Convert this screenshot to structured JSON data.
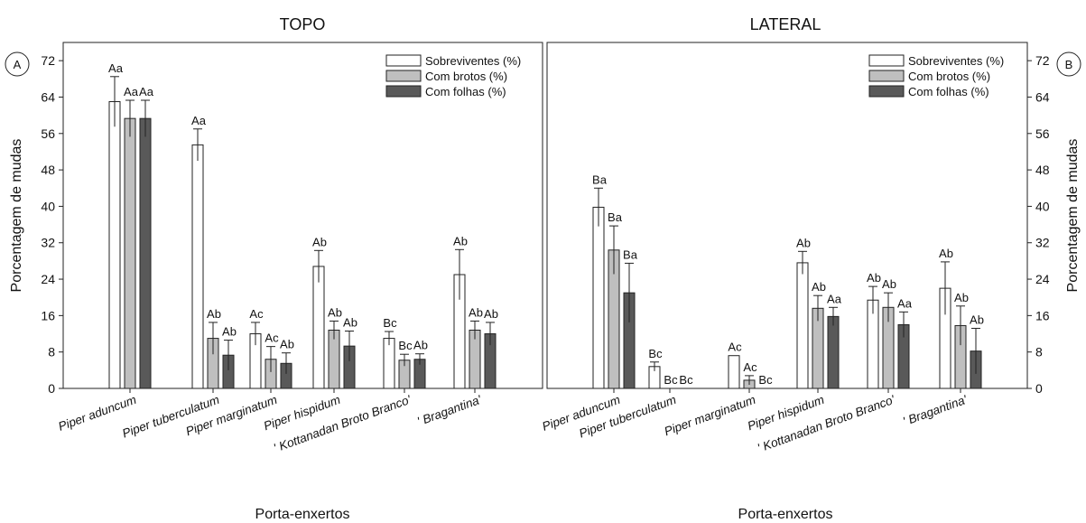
{
  "chart_data": [
    {
      "type": "bar",
      "panel_letter": "A",
      "title": "TOPO",
      "xlabel": "Porta-enxertos",
      "ylabel": "Porcentagem de mudas",
      "ylim": [
        0,
        76
      ],
      "yticks": [
        0,
        8,
        16,
        24,
        32,
        40,
        48,
        56,
        64,
        72
      ],
      "legend_position": "top-right",
      "categories": [
        {
          "label": "Piper aduncum",
          "italic": true
        },
        {
          "label": "Piper tuberculatum",
          "italic": true
        },
        {
          "label": "Piper marginatum",
          "italic": true
        },
        {
          "label": "Piper hispidum",
          "italic": true
        },
        {
          "label": "' Kottanadan Broto Branco'",
          "italic": true
        },
        {
          "label": "' Bragantina'",
          "italic": true
        }
      ],
      "series": [
        {
          "name": "Sobreviventes (%)",
          "color": "#ffffff",
          "values": [
            63,
            53.5,
            12,
            26.8,
            11,
            25
          ],
          "errors": [
            5.5,
            3.5,
            2.5,
            3.5,
            1.5,
            5.5
          ],
          "labels": [
            "Aa",
            "Aa",
            "Ac",
            "Ab",
            "Bc",
            "Ab"
          ]
        },
        {
          "name": "Com brotos (%)",
          "color": "#bfbfbf",
          "values": [
            59.3,
            11,
            6.4,
            12.8,
            6.2,
            12.8
          ],
          "errors": [
            4,
            3.5,
            2.8,
            2,
            1.3,
            2
          ],
          "labels": [
            "Aa",
            "Ab",
            "Ac",
            "Ab",
            "Bc",
            "Ab"
          ]
        },
        {
          "name": "Com folhas (%)",
          "color": "#595959",
          "values": [
            59.3,
            7.3,
            5.5,
            9.3,
            6.4,
            12
          ],
          "errors": [
            4,
            3.3,
            2.3,
            3.3,
            1.2,
            2.5
          ],
          "labels": [
            "Aa",
            "Ab",
            "Ab",
            "Ab",
            "Ab",
            "Ab"
          ]
        }
      ]
    },
    {
      "type": "bar",
      "panel_letter": "B",
      "title": "LATERAL",
      "xlabel": "Porta-enxertos",
      "ylabel": "Porcentagem de mudas",
      "ylim": [
        0,
        76
      ],
      "yticks": [
        0,
        8,
        16,
        24,
        32,
        40,
        48,
        56,
        64,
        72
      ],
      "legend_position": "top-right",
      "categories": [
        {
          "label": "Piper aduncum",
          "italic": true
        },
        {
          "label": "Piper tuberculatum",
          "italic": true
        },
        {
          "label": "Piper marginatum",
          "italic": true
        },
        {
          "label": "Piper hispidum",
          "italic": true
        },
        {
          "label": "' Kottanadan Broto Branco'",
          "italic": true
        },
        {
          "label": "' Bragantina'",
          "italic": true
        }
      ],
      "series": [
        {
          "name": "Sobreviventes (%)",
          "color": "#ffffff",
          "values": [
            39.8,
            4.8,
            7.2,
            27.6,
            19.4,
            22
          ],
          "errors": [
            4.2,
            1,
            0,
            2.5,
            3,
            5.8
          ],
          "labels": [
            "Ba",
            "Bc",
            "Ac",
            "Ab",
            "Ab",
            "Ab"
          ]
        },
        {
          "name": "Com brotos (%)",
          "color": "#bfbfbf",
          "values": [
            30.4,
            0,
            1.8,
            17.6,
            17.8,
            13.8
          ],
          "errors": [
            5.3,
            0,
            1,
            2.8,
            3.2,
            4.3
          ],
          "labels": [
            "Ba",
            "Bc",
            "Ac",
            "Ab",
            "Ab",
            "Ab"
          ]
        },
        {
          "name": "Com folhas (%)",
          "color": "#595959",
          "values": [
            21,
            0,
            0,
            15.8,
            14,
            8.2
          ],
          "errors": [
            6.5,
            0,
            0,
            2,
            2.8,
            5
          ],
          "labels": [
            "Ba",
            "Bc",
            "Bc",
            "Aa",
            "Aa",
            "Ab"
          ]
        }
      ]
    }
  ]
}
